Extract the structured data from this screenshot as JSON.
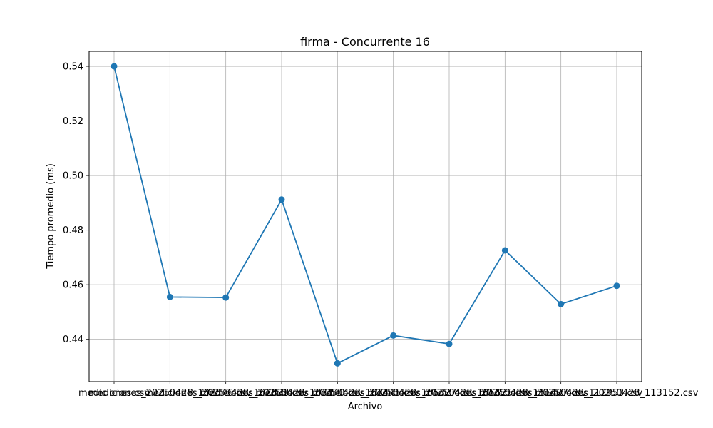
{
  "chart_data": {
    "type": "line",
    "title": "firma - Concurrente 16",
    "xlabel": "Archivo",
    "ylabel": "Tiempo promedio (ms)",
    "categories": [
      "mediciones.csv",
      "mediciones_20250428_102546.csv",
      "mediciones_20250428_102838.csv",
      "mediciones_20250428_103140.csv",
      "mediciones_20250428_103445.csv",
      "mediciones_20250428_105327.csv",
      "mediciones_20250428_105625.csv",
      "mediciones_20250428_111407.csv",
      "mediciones_20250428_112953.csv",
      "mediciones_20250428_113152.csv"
    ],
    "series": [
      {
        "values": [
          0.54,
          0.4555,
          0.4553,
          0.4912,
          0.4312,
          0.4414,
          0.4383,
          0.4726,
          0.4529,
          0.4596
        ]
      }
    ],
    "ylim": [
      0.4245,
      0.5455
    ],
    "yticks": [
      "0.44",
      "0.46",
      "0.48",
      "0.50",
      "0.52",
      "0.54"
    ],
    "grid": true,
    "color": "#1f77b4"
  }
}
